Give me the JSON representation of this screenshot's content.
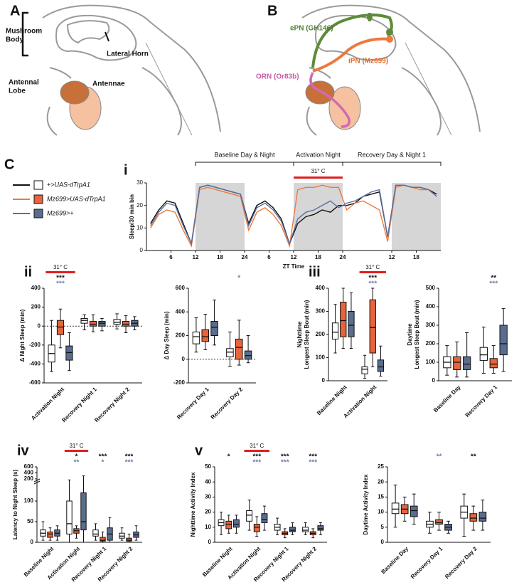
{
  "diagram_a": {
    "label": "A",
    "mushroom_body": [
      "Mushroom",
      "Body"
    ],
    "lateral_horn": "Lateral Horn",
    "antennal_lobe": [
      "Antennal",
      "Lobe"
    ],
    "antennae": "Antennae"
  },
  "diagram_b": {
    "label": "B",
    "epn": "ePN (GH146)",
    "ipn": "iPN (Mz699)",
    "orn": "ORN (Or83b)"
  },
  "legend_label": "C",
  "chart_data": [
    {
      "type": "line",
      "panel": "i",
      "y_label": "Sleep/30 min bin",
      "x_label": "ZT Time",
      "x": [
        1,
        3,
        5,
        7,
        9,
        11,
        13,
        15,
        17,
        19,
        21,
        23,
        25,
        27,
        29,
        31,
        33,
        35,
        37,
        39,
        41,
        43,
        45,
        47,
        49,
        51,
        53,
        55,
        57,
        59,
        61,
        63,
        65,
        67,
        69,
        71
      ],
      "series": [
        {
          "name": "+>UAS-dTrpA1",
          "color": "#111111",
          "values": [
            12,
            18,
            22,
            21,
            12,
            3,
            28,
            29,
            28,
            27,
            26,
            25,
            12,
            20,
            22,
            19,
            14,
            3,
            12,
            15,
            16,
            18,
            17,
            20,
            20,
            21,
            24,
            25,
            26,
            6,
            29,
            29,
            28,
            28,
            27,
            25
          ]
        },
        {
          "name": "Mz699>UAS-dTrpA1",
          "color": "#ec7a3e",
          "values": [
            10,
            16,
            18,
            17,
            9,
            2,
            27,
            28,
            27,
            26,
            25,
            24,
            9,
            17,
            19,
            16,
            11,
            2,
            27,
            28,
            28,
            29,
            28,
            28,
            18,
            21,
            22,
            20,
            18,
            4,
            28,
            29,
            28,
            27,
            27,
            24
          ]
        },
        {
          "name": "Mz699>+",
          "color": "#5b6fa0",
          "values": [
            11,
            17,
            21,
            20,
            11,
            3,
            28,
            29,
            28,
            27,
            26,
            25,
            11,
            19,
            21,
            18,
            13,
            3,
            14,
            17,
            18,
            20,
            22,
            19,
            21,
            22,
            24,
            26,
            27,
            6,
            29,
            29,
            28,
            28,
            27,
            24
          ]
        }
      ],
      "xlim": [
        0,
        72
      ],
      "xticks": [
        6,
        12,
        18,
        24,
        {
          "value": 30,
          "label": "6"
        },
        {
          "value": 36,
          "label": "12"
        },
        {
          "value": 42,
          "label": "18"
        },
        {
          "value": 48,
          "label": "24"
        },
        {
          "value": 60,
          "label": "12"
        },
        {
          "value": 66,
          "label": "18"
        }
      ],
      "ylim": [
        0,
        30
      ],
      "yticks": [
        0,
        10,
        20,
        30
      ],
      "night_periods": [
        [
          12,
          24
        ],
        [
          36,
          48
        ],
        [
          60,
          72
        ]
      ],
      "periods": [
        {
          "label": "Baseline Day & Night",
          "range": [
            12,
            36
          ]
        },
        {
          "label": "Activation Night",
          "range": [
            36,
            48
          ]
        },
        {
          "label": "Recovery Day & Night 1",
          "range": [
            48,
            72
          ]
        }
      ],
      "temperature": {
        "label": "31° C",
        "range": [
          36,
          48
        ]
      }
    },
    {
      "type": "box",
      "panel": "ii",
      "y_label": [
        "Δ Night Sleep (min)"
      ],
      "categories": [
        "Activation Night",
        "Recovery Night 1",
        "Recovery Night 2"
      ],
      "ylim": [
        -600,
        400
      ],
      "yticks": [
        -600,
        -400,
        -200,
        0,
        200,
        400
      ],
      "zero_line": true,
      "series": [
        {
          "color": "#ffffff",
          "values": [
            [
              -480,
              -380,
              -290,
              -200,
              60
            ],
            [
              -40,
              30,
              60,
              80,
              120
            ],
            [
              -30,
              20,
              40,
              70,
              130
            ]
          ]
        },
        {
          "color": "#e8643a",
          "values": [
            [
              -230,
              -90,
              -10,
              60,
              180
            ],
            [
              -60,
              0,
              20,
              50,
              120
            ],
            [
              -70,
              0,
              20,
              50,
              110
            ]
          ]
        },
        {
          "color": "#5a6d8f",
          "values": [
            [
              -470,
              -360,
              -280,
              -210,
              -70
            ],
            [
              -50,
              0,
              30,
              50,
              80
            ],
            [
              -40,
              0,
              30,
              60,
              100
            ]
          ]
        }
      ],
      "temperature": {
        "label": "31° C",
        "category": "Activation Night"
      },
      "significance": [
        {
          "category": "Activation Night",
          "marks": [
            {
              "text": "***",
              "color": "#111111"
            },
            {
              "text": "***",
              "color": "#6d7fa6"
            }
          ]
        }
      ]
    },
    {
      "type": "box",
      "y_label": [
        "Δ Day Sleep (min)"
      ],
      "categories": [
        "Recovery Day 1",
        "Recovery Day 2"
      ],
      "ylim": [
        -200,
        600
      ],
      "yticks": [
        -200,
        0,
        200,
        400,
        600
      ],
      "zero_line": true,
      "series": [
        {
          "color": "#ffffff",
          "values": [
            [
              60,
              130,
              190,
              230,
              350
            ],
            [
              -60,
              20,
              60,
              90,
              230
            ]
          ]
        },
        {
          "color": "#e8643a",
          "values": [
            [
              80,
              150,
              190,
              250,
              380
            ],
            [
              -50,
              0,
              100,
              170,
              330
            ]
          ]
        },
        {
          "color": "#5a6d8f",
          "values": [
            [
              120,
              200,
              270,
              320,
              500
            ],
            [
              -30,
              0,
              30,
              70,
              200
            ]
          ]
        }
      ],
      "significance": [
        {
          "category": "Recovery Day 2",
          "marks": [
            {
              "text": "*",
              "color": "#6d7fa6"
            }
          ]
        }
      ]
    },
    {
      "type": "box",
      "panel": "iii",
      "y_label": [
        "Nighttime",
        "Longest Sleep Bout (min)"
      ],
      "categories": [
        "Baseline Night",
        "Activation Night"
      ],
      "ylim": [
        0,
        400
      ],
      "yticks": [
        0,
        100,
        200,
        300,
        400
      ],
      "series": [
        {
          "color": "#ffffff",
          "values": [
            [
              120,
              180,
              210,
              250,
              330
            ],
            [
              10,
              30,
              50,
              60,
              110
            ]
          ]
        },
        {
          "color": "#e8643a",
          "values": [
            [
              140,
              190,
              260,
              340,
              400
            ],
            [
              60,
              120,
              230,
              350,
              400
            ]
          ]
        },
        {
          "color": "#5a6d8f",
          "values": [
            [
              140,
              190,
              240,
              300,
              380
            ],
            [
              20,
              40,
              60,
              90,
              150
            ]
          ]
        }
      ],
      "temperature": {
        "label": "31° C",
        "category": "Activation Night"
      },
      "significance": [
        {
          "category": "Activation Night",
          "marks": [
            {
              "text": "***",
              "color": "#111111"
            },
            {
              "text": "***",
              "color": "#6d7fa6"
            }
          ]
        }
      ]
    },
    {
      "type": "box",
      "y_label": [
        "Daytime",
        "Longest Sleep Bout (min)"
      ],
      "categories": [
        "Baseline Day",
        "Recovery Day 1"
      ],
      "ylim": [
        0,
        500
      ],
      "yticks": [
        0,
        100,
        200,
        300,
        400,
        500
      ],
      "series": [
        {
          "color": "#ffffff",
          "values": [
            [
              30,
              70,
              100,
              130,
              190
            ],
            [
              40,
              110,
              140,
              180,
              290
            ]
          ]
        },
        {
          "color": "#e8643a",
          "values": [
            [
              20,
              60,
              100,
              130,
              210
            ],
            [
              40,
              70,
              90,
              120,
              190
            ]
          ]
        },
        {
          "color": "#5a6d8f",
          "values": [
            [
              20,
              60,
              90,
              130,
              260
            ],
            [
              50,
              140,
              200,
              300,
              390
            ]
          ]
        }
      ],
      "significance": [
        {
          "category": "Recovery Day 1",
          "marks": [
            {
              "text": "**",
              "color": "#111111"
            },
            {
              "text": "***",
              "color": "#6d7fa6"
            }
          ]
        }
      ]
    },
    {
      "type": "box",
      "panel": "iv",
      "y_label": [
        "Latency to Night Sleep (s)"
      ],
      "categories": [
        "Baseline Night",
        "Activation Night",
        "Recovery Night 1",
        "Recovery Night 2"
      ],
      "ylim": [
        0,
        150
      ],
      "yticks": [
        0,
        50,
        100
      ],
      "ylim_upper": [
        150,
        600
      ],
      "yticks_upper": [
        200,
        400,
        600
      ],
      "series": [
        {
          "color": "#ffffff",
          "values": [
            [
              5,
              15,
              22,
              30,
              50
            ],
            [
              0,
              20,
              45,
              100,
              165
            ],
            [
              5,
              15,
              20,
              30,
              45
            ],
            [
              5,
              10,
              15,
              22,
              35
            ]
          ]
        },
        {
          "color": "#e8643a",
          "values": [
            [
              5,
              12,
              20,
              25,
              35
            ],
            [
              10,
              22,
              28,
              33,
              40
            ],
            [
              0,
              3,
              5,
              12,
              25
            ],
            [
              0,
              3,
              5,
              10,
              20
            ]
          ]
        },
        {
          "color": "#5a6d8f",
          "values": [
            [
              5,
              15,
              22,
              30,
              40
            ],
            [
              0,
              30,
              50,
              120,
              300
            ],
            [
              0,
              5,
              20,
              35,
              60
            ],
            [
              5,
              12,
              18,
              25,
              40
            ]
          ]
        }
      ],
      "temperature": {
        "label": "31° C",
        "category": "Activation Night"
      },
      "significance": [
        {
          "category": "Activation Night",
          "marks": [
            {
              "text": "*",
              "color": "#111111"
            },
            {
              "text": "**",
              "color": "#6d7fa6"
            }
          ]
        },
        {
          "category": "Recovery Night 1",
          "marks": [
            {
              "text": "***",
              "color": "#111111"
            },
            {
              "text": "*",
              "color": "#6d7fa6"
            }
          ]
        },
        {
          "category": "Recovery Night 2",
          "marks": [
            {
              "text": "***",
              "color": "#111111"
            },
            {
              "text": "***",
              "color": "#6d7fa6"
            }
          ]
        }
      ]
    },
    {
      "type": "box",
      "panel": "v",
      "y_label": [
        "Nighttime Activity Index"
      ],
      "categories": [
        "Baseline Night",
        "Activation Night",
        "Recovery Night 1",
        "Recovery Night 2"
      ],
      "ylim": [
        0,
        50
      ],
      "yticks": [
        0,
        10,
        20,
        30,
        40,
        50
      ],
      "series": [
        {
          "color": "#ffffff",
          "values": [
            [
              5,
              11,
              13,
              15,
              20
            ],
            [
              8,
              14,
              18,
              21,
              28
            ],
            [
              5,
              8,
              10,
              12,
              16
            ],
            [
              5,
              7,
              8,
              10,
              13
            ]
          ]
        },
        {
          "color": "#e8643a",
          "values": [
            [
              6,
              9,
              12,
              14,
              18
            ],
            [
              4,
              7,
              10,
              12,
              17
            ],
            [
              3,
              5,
              6,
              7,
              9
            ],
            [
              3,
              5,
              6,
              7,
              9
            ]
          ]
        },
        {
          "color": "#5a6d8f",
          "values": [
            [
              6,
              10,
              12,
              15,
              18
            ],
            [
              8,
              13,
              15,
              19,
              24
            ],
            [
              5,
              7,
              8,
              10,
              13
            ],
            [
              5,
              8,
              9,
              11,
              13
            ]
          ]
        }
      ],
      "temperature": {
        "label": "31° C",
        "category": "Activation Night"
      },
      "significance": [
        {
          "category": "Baseline Night",
          "marks": [
            {
              "text": "*",
              "color": "#111111"
            }
          ]
        },
        {
          "category": "Activation Night",
          "marks": [
            {
              "text": "***",
              "color": "#111111"
            },
            {
              "text": "***",
              "color": "#6d7fa6"
            }
          ]
        },
        {
          "category": "Recovery Night 1",
          "marks": [
            {
              "text": "***",
              "color": "#111111"
            },
            {
              "text": "***",
              "color": "#6d7fa6"
            }
          ]
        },
        {
          "category": "Recovery Night 2",
          "marks": [
            {
              "text": "***",
              "color": "#111111"
            },
            {
              "text": "***",
              "color": "#6d7fa6"
            }
          ]
        }
      ]
    },
    {
      "type": "box",
      "y_label": [
        "Daytime  Activity Index"
      ],
      "categories": [
        "Baseline Day",
        "Recovery Day 1",
        "Recovery Day 2"
      ],
      "ylim": [
        0,
        25
      ],
      "yticks": [
        0,
        5,
        10,
        15,
        20,
        25
      ],
      "series": [
        {
          "color": "#ffffff",
          "values": [
            [
              5,
              9.5,
              11,
              13,
              19
            ],
            [
              3,
              5,
              6,
              7,
              10
            ],
            [
              2,
              8,
              10,
              12,
              16
            ]
          ]
        },
        {
          "color": "#e8643a",
          "values": [
            [
              7,
              9.5,
              11,
              12.5,
              15
            ],
            [
              4,
              6,
              6.5,
              7.5,
              10
            ],
            [
              4,
              7,
              8,
              9.5,
              12
            ]
          ]
        },
        {
          "color": "#5a6d8f",
          "values": [
            [
              6,
              8.5,
              10.5,
              12,
              16
            ],
            [
              3,
              4,
              5,
              6,
              7
            ],
            [
              4,
              7,
              8,
              10,
              14
            ]
          ]
        }
      ],
      "significance": [
        {
          "category": "Recovery Day 1",
          "marks": [
            {
              "text": "**",
              "color": "#6d7fa6"
            }
          ]
        },
        {
          "category": "Recovery Day 2",
          "marks": [
            {
              "text": "**",
              "color": "#111111"
            }
          ]
        }
      ]
    }
  ]
}
